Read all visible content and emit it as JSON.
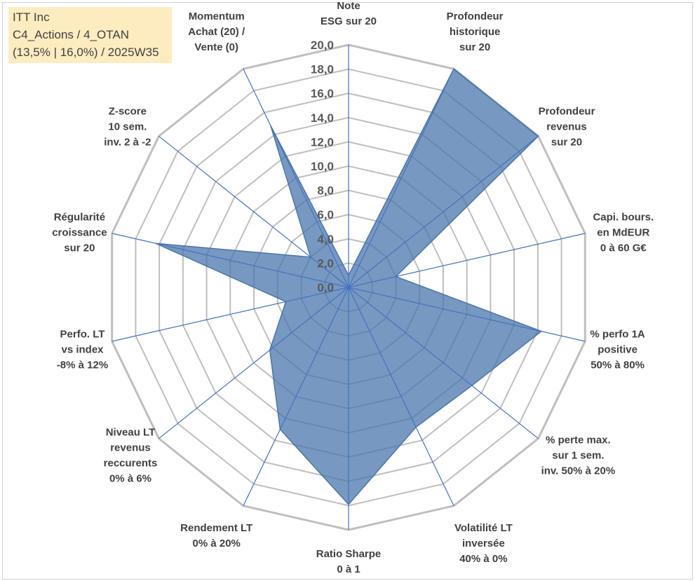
{
  "header": {
    "line1": "ITT Inc",
    "line2": "C4_Actions / 4_OTAN",
    "line3": "(13,5% | 16,0%) / 2025W35"
  },
  "chart_data": {
    "type": "radar",
    "rlim": [
      0,
      20
    ],
    "ticks": [
      "0,0",
      "2,0",
      "4,0",
      "6,0",
      "8,0",
      "10,0",
      "12,0",
      "14,0",
      "16,0",
      "18,0",
      "20,0"
    ],
    "grid": true,
    "axes": [
      {
        "label": [
          "Note",
          "ESG sur 20"
        ],
        "value": 1.0
      },
      {
        "label": [
          "Profondeur",
          "historique",
          "sur 20"
        ],
        "value": 20.0
      },
      {
        "label": [
          "Profondeur",
          "revenus",
          "sur 20"
        ],
        "value": 20.0
      },
      {
        "label": [
          "Capi. bours.",
          "en MdEUR",
          "0 à 60 G€"
        ],
        "value": 4.0
      },
      {
        "label": [
          "% perfo 1A",
          "positive",
          "50% à 80%"
        ],
        "value": 16.3
      },
      {
        "label": [
          "% perte max.",
          "sur 1 sem.",
          "inv. 50% à 20%"
        ],
        "value": 13.0
      },
      {
        "label": [
          "Volatilité LT",
          "inversée",
          "40% à 0%"
        ],
        "value": 12.8
      },
      {
        "label": [
          "Ratio Sharpe",
          "0 à 1"
        ],
        "value": 17.9
      },
      {
        "label": [
          "Rendement LT",
          "0% à 20%"
        ],
        "value": 13.0
      },
      {
        "label": [
          "Niveau LT",
          "revenus",
          "reccurents",
          "0% à 6%"
        ],
        "value": 8.3
      },
      {
        "label": [
          "Perfo. LT",
          "vs index",
          "-8% à 12%"
        ],
        "value": 5.3
      },
      {
        "label": [
          "Régularité",
          "croissance",
          "sur 20"
        ],
        "value": 16.3
      },
      {
        "label": [
          "Z-score",
          "10 sem.",
          "inv. 2 à -2"
        ],
        "value": 4.0
      },
      {
        "label": [
          "Momentum",
          "Achat (20) /",
          "Vente (0)"
        ],
        "value": 14.8
      }
    ],
    "colors": {
      "fill": "#4a76ab",
      "spoke": "#4472c4",
      "grid": "#bfbfbf",
      "outer_grid": "#bfbfbf"
    }
  }
}
